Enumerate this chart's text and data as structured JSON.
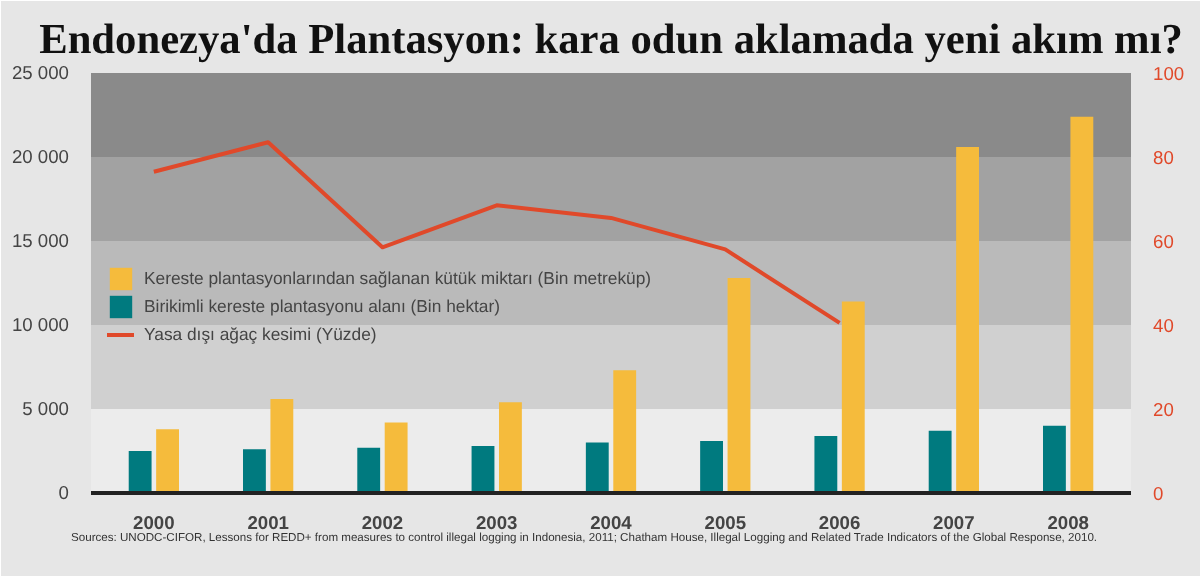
{
  "chart_data": {
    "type": "bar",
    "title": "Endonezya'da Plantasyon: kara odun aklamada yeni akım mı?",
    "categories": [
      "2000",
      "2001",
      "2002",
      "2003",
      "2004",
      "2005",
      "2006",
      "2007",
      "2008"
    ],
    "series": [
      {
        "name": "Birikimli kereste plantasyonu alanı (Bin hektar)",
        "color": "#007a7f",
        "values": [
          2500,
          2600,
          2700,
          2800,
          3000,
          3100,
          3400,
          3700,
          4000
        ]
      },
      {
        "name": "Kereste plantasyonlarından sağlanan kütük miktarı (Bin metreküp)",
        "color": "#f5bb3c",
        "values": [
          3800,
          5600,
          4200,
          5400,
          7300,
          12800,
          11400,
          20600,
          22400
        ]
      },
      {
        "name": "Yasa dışı ağaç kesimi (Yüzde)",
        "type": "line",
        "axis": "y2",
        "color": "#e0492a",
        "values": [
          76.5,
          83.5,
          58.5,
          68.5,
          65.5,
          58,
          40.5,
          null,
          null
        ]
      }
    ],
    "ylim": [
      0,
      25000
    ],
    "yticks": [
      0,
      {
        "value": 5000,
        "label": "5 000"
      },
      {
        "value": 10000,
        "label": "10 000"
      },
      {
        "value": 15000,
        "label": "15 000"
      },
      {
        "value": 20000,
        "label": "20 000"
      },
      {
        "value": 25000,
        "label": "25 000"
      }
    ],
    "y2lim": [
      0,
      100
    ],
    "y2ticks": [
      0,
      20,
      40,
      60,
      80,
      100
    ],
    "bands": [
      {
        "axis": "y",
        "from": 0,
        "to": 5000,
        "color": "#ececec"
      },
      {
        "axis": "y",
        "from": 5000,
        "to": 10000,
        "color": "#d0d0d0"
      },
      {
        "axis": "y",
        "from": 10000,
        "to": 15000,
        "color": "#bababa"
      },
      {
        "axis": "y",
        "from": 15000,
        "to": 20000,
        "color": "#a2a2a2"
      },
      {
        "axis": "y",
        "from": 20000,
        "to": 25000,
        "color": "#8a8a8a"
      }
    ],
    "legend": "left",
    "annotations": [
      "Sources: UNODC-CIFOR, Lessons for REDD+ from measures to control illegal logging in Indonesia, 2011;  Chatham House, Illegal Logging and Related Trade Indicators of the Global Response, 2010."
    ]
  }
}
